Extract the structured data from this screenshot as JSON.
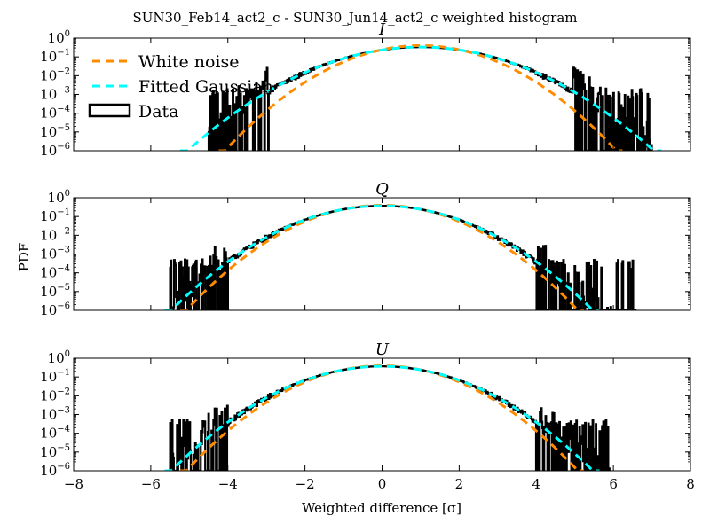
{
  "figure": {
    "title": "SUN30_Feb14_act2_c - SUN30_Jun14_act2_c weighted histogram",
    "xlabel": "Weighted difference [σ]",
    "ylabel": "PDF"
  },
  "legend": {
    "placement": "upper-left of top panel",
    "entries": [
      {
        "label": "White noise",
        "color": "#ff8c00",
        "style": "dashed"
      },
      {
        "label": "Fitted Gaussian",
        "color": "#00ffff",
        "style": "dashed"
      },
      {
        "label": "Data",
        "color": "#000000",
        "style": "box"
      }
    ]
  },
  "chart_data": [
    {
      "type": "line",
      "title": "I",
      "xlim": [
        -8,
        8
      ],
      "ylim": [
        1e-06,
        1
      ],
      "yscale": "log",
      "x_ticks": [
        -8,
        -6,
        -4,
        -2,
        0,
        2,
        4,
        6,
        8
      ],
      "y_ticks": [
        1e-06,
        1e-05,
        0.0001,
        0.001,
        0.01,
        0.1,
        1
      ],
      "series": [
        {
          "name": "White noise",
          "model": "gaussian",
          "mean": 1.0,
          "sigma": 1.0,
          "color": "#ff8c00"
        },
        {
          "name": "Fitted Gaussian",
          "model": "gaussian",
          "mean": 1.0,
          "sigma": 1.2,
          "color": "#00ffff"
        },
        {
          "name": "Data",
          "model": "histogram",
          "range": [
            -4.5,
            7.0
          ],
          "tail_floor": 0.0015,
          "color": "#000000"
        }
      ]
    },
    {
      "type": "line",
      "title": "Q",
      "xlim": [
        -8,
        8
      ],
      "ylim": [
        1e-06,
        1
      ],
      "yscale": "log",
      "x_ticks": [
        -8,
        -6,
        -4,
        -2,
        0,
        2,
        4,
        6,
        8
      ],
      "y_ticks": [
        1e-06,
        1e-05,
        0.0001,
        0.001,
        0.01,
        0.1,
        1
      ],
      "series": [
        {
          "name": "White noise",
          "model": "gaussian",
          "mean": 0.0,
          "sigma": 1.0,
          "color": "#ff8c00"
        },
        {
          "name": "Fitted Gaussian",
          "model": "gaussian",
          "mean": 0.0,
          "sigma": 1.08,
          "color": "#00ffff"
        },
        {
          "name": "Data",
          "model": "histogram",
          "range": [
            -5.5,
            6.6
          ],
          "tail_floor": 0.0004,
          "color": "#000000"
        }
      ]
    },
    {
      "type": "line",
      "title": "U",
      "xlim": [
        -8,
        8
      ],
      "ylim": [
        1e-06,
        1
      ],
      "yscale": "log",
      "x_ticks": [
        -8,
        -6,
        -4,
        -2,
        0,
        2,
        4,
        6,
        8
      ],
      "y_ticks": [
        1e-06,
        1e-05,
        0.0001,
        0.001,
        0.01,
        0.1,
        1
      ],
      "series": [
        {
          "name": "White noise",
          "model": "gaussian",
          "mean": 0.0,
          "sigma": 1.0,
          "color": "#ff8c00"
        },
        {
          "name": "Fitted Gaussian",
          "model": "gaussian",
          "mean": 0.0,
          "sigma": 1.08,
          "color": "#00ffff"
        },
        {
          "name": "Data",
          "model": "histogram",
          "range": [
            -5.5,
            5.9
          ],
          "tail_floor": 0.0004,
          "color": "#000000"
        }
      ]
    }
  ]
}
